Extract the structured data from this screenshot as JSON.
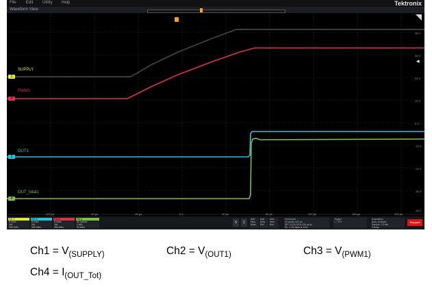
{
  "menu": [
    "File",
    "Edit",
    "Utility",
    "Help"
  ],
  "brand": "Tektronix",
  "view_label": "Waveform View",
  "trigger_level_symbol": "◂",
  "channels": {
    "supply": {
      "label": "SUPPLY",
      "badge": "1",
      "color": "#e5e832"
    },
    "pwm1": {
      "label": "PWM1",
      "badge": "4",
      "color": "#e0304c"
    },
    "out1": {
      "label": "OUT1",
      "badge": "3",
      "color": "#22c6dc"
    },
    "out_total": {
      "label": "OUT_total1",
      "badge": "4",
      "color": "#7cc23c"
    }
  },
  "right_scale": [
    "48 V",
    "36 V",
    "24 V",
    "12 V",
    "0 V",
    "-12 V",
    "-24 V",
    "-36 V",
    "-48 V"
  ],
  "time_axis": [
    "-120 µs",
    "-80 µs",
    "-40 µs",
    "0 s",
    "40 µs",
    "80 µs",
    "120 µs",
    "160 µs",
    "200 µs"
  ],
  "panel": {
    "ch1": {
      "head": "Ch 1",
      "rows": [
        "5 V/div",
        "1M",
        "250 MHz"
      ],
      "color": "#e5e832"
    },
    "ch2": {
      "head": "Ch 2",
      "rows": [
        "5 V/div",
        "1M",
        "250 MHz"
      ],
      "color": "#22c6dc"
    },
    "ch3": {
      "head": "Ch 3",
      "rows": [
        "5 V/div",
        "1M",
        "250 MHz"
      ],
      "color": "#e0304c"
    },
    "ch4": {
      "head": "Ch 4",
      "rows": [
        "50 mA/div",
        "1 MΩ",
        "20 MHz"
      ],
      "color": "#7cc23c"
    },
    "btn_a": "S",
    "btn_b": "C",
    "add_boxes": [
      [
        "Add",
        "New",
        "Math"
      ],
      [
        "Add",
        "New",
        "Ref"
      ],
      [
        "Add",
        "New",
        "Bus"
      ]
    ],
    "horizontal": {
      "title": "Horizontal",
      "rows": [
        "40 µs/div   400 µs",
        "SR: 3.125 GS/s   320 ps/pt",
        "RL: 1.25 Mpts   ⊕ 40%"
      ]
    },
    "trigger": {
      "title": "Trigger",
      "rows": [
        "1  ⌐  8 V"
      ]
    },
    "acquisition": {
      "title": "Acquisition",
      "rows": [
        "Auto,   Analyze",
        "Sample: 12 bits",
        "0 Acqs"
      ]
    },
    "stopped": "Stopped"
  },
  "captions": {
    "ch1": {
      "prefix": "Ch1 = V",
      "sub": "(SUPPLY)"
    },
    "ch2": {
      "prefix": "Ch2 = V",
      "sub": "(OUT1)"
    },
    "ch3": {
      "prefix": "Ch3 = V",
      "sub": "(PWM1)"
    },
    "ch4": {
      "prefix": "Ch4 = I",
      "sub": "(OUT_Tot)"
    }
  }
}
